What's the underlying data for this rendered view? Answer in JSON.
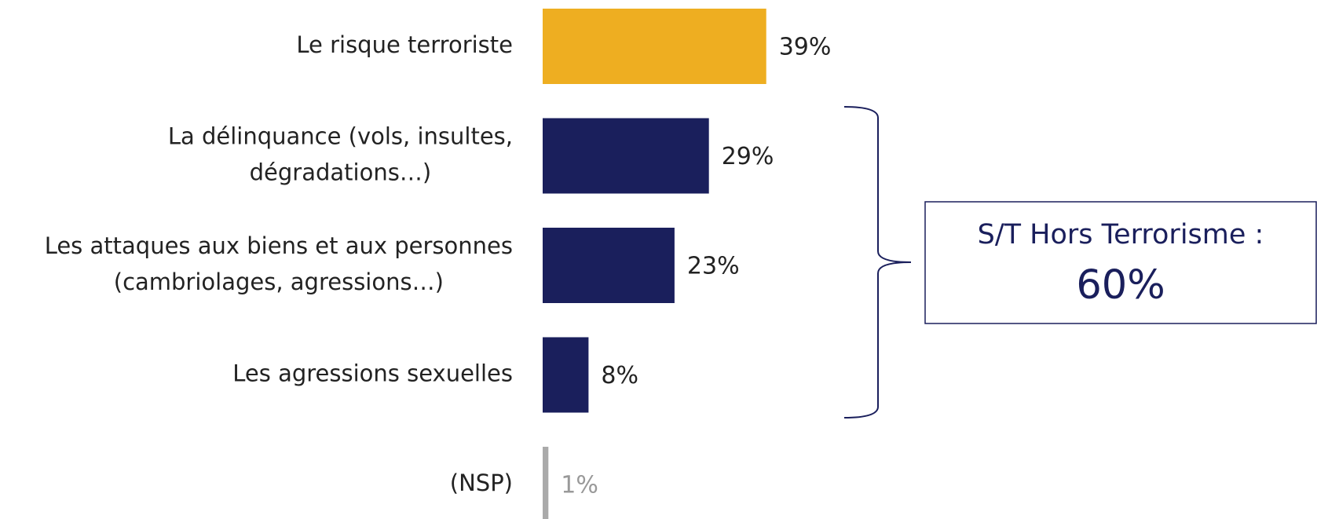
{
  "chart_data": {
    "type": "bar",
    "categories": [
      [
        "Le risque terroriste"
      ],
      [
        "La délinquance (vols, insultes,",
        "dégradations…)"
      ],
      [
        "Les attaques aux biens et aux personnes",
        "(cambriolages, agressions…)"
      ],
      [
        "Les agressions sexuelles"
      ],
      [
        "(NSP)"
      ]
    ],
    "values": [
      39,
      29,
      23,
      8,
      1
    ],
    "value_labels": [
      "39%",
      "29%",
      "23%",
      "8%",
      "1%"
    ],
    "colors": [
      "#eeae21",
      "#1a1f5c",
      "#1a1f5c",
      "#1a1f5c",
      "#aaaaaa"
    ],
    "annotation": {
      "label": "S/T Hors Terrorisme :",
      "value_label": "60%"
    }
  }
}
